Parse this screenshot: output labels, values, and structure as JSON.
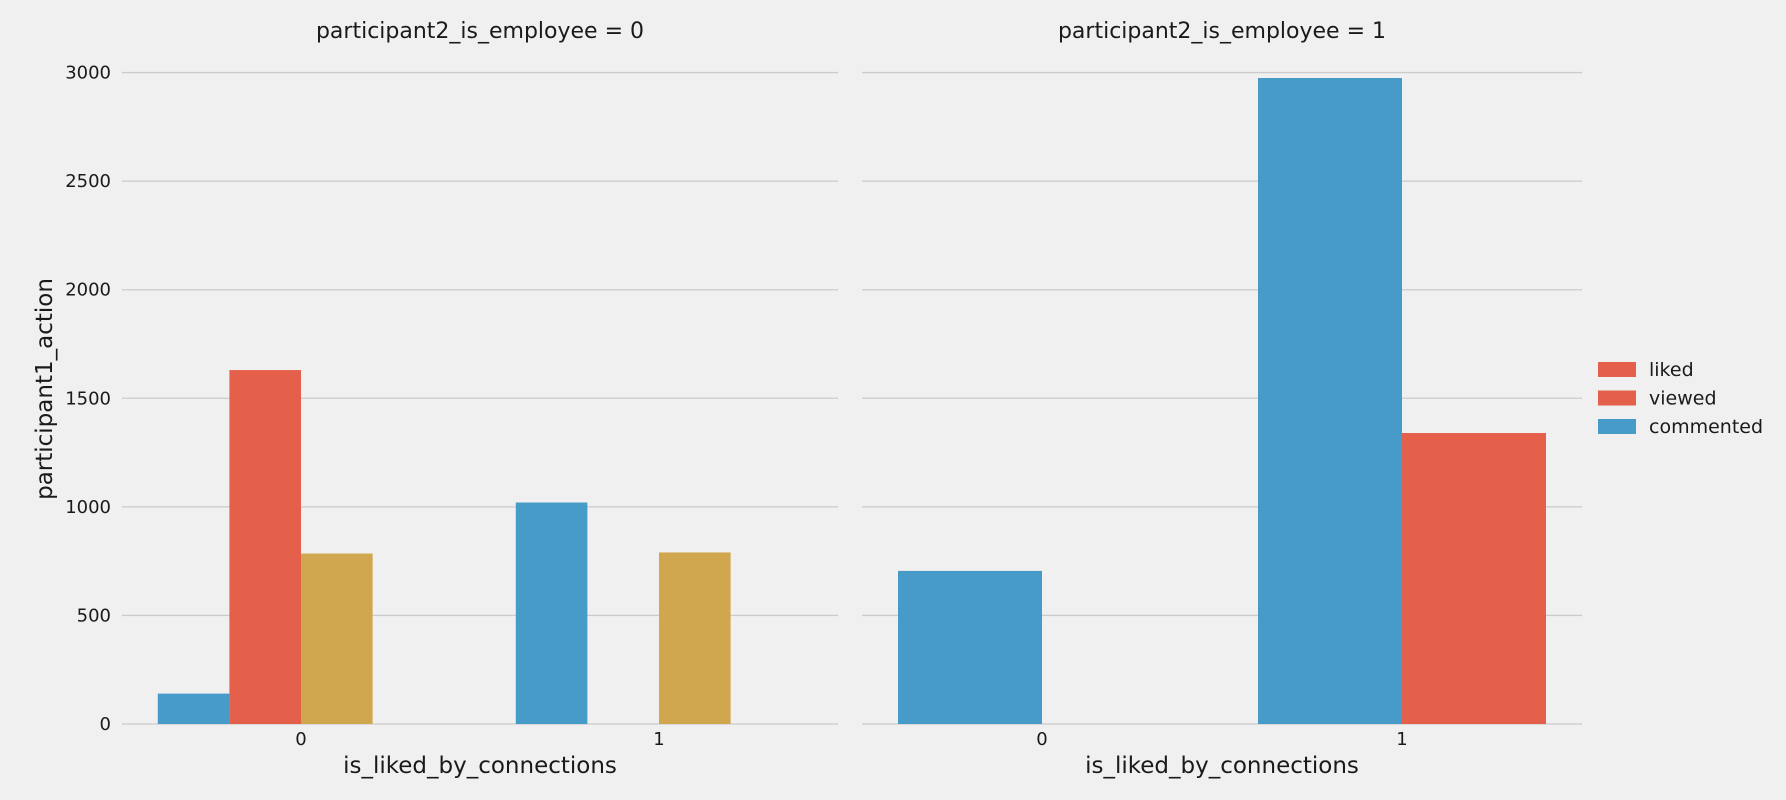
{
  "chart_data": {
    "type": "bar",
    "ylabel": "participant1_action",
    "ylim": [
      0,
      3150
    ],
    "yticks": [
      0,
      500,
      1000,
      1500,
      2000,
      2500,
      3000
    ],
    "grid": true,
    "legend_placement": "right",
    "legend": [
      {
        "label": "liked",
        "color": "#e5604a"
      },
      {
        "label": "viewed",
        "color": "#e5604a"
      },
      {
        "label": "commented",
        "color": "#479bc8"
      }
    ],
    "palette": [
      "#479bc8",
      "#e5604a",
      "#d0a74e"
    ],
    "panels": [
      {
        "title": "participant2_is_employee = 0",
        "xlabel": "is_liked_by_connections",
        "categories": [
          "0",
          "1"
        ],
        "hue_slots": 4,
        "bars": [
          {
            "category": "0",
            "slot": 0,
            "value": 140,
            "color": "#479bc8"
          },
          {
            "category": "0",
            "slot": 1,
            "value": 1630,
            "color": "#e5604a"
          },
          {
            "category": "0",
            "slot": 2,
            "value": 785,
            "color": "#d0a74e"
          },
          {
            "category": "1",
            "slot": 0,
            "value": 1020,
            "color": "#479bc8"
          },
          {
            "category": "1",
            "slot": 2,
            "value": 790,
            "color": "#d0a74e"
          }
        ]
      },
      {
        "title": "participant2_is_employee = 1",
        "xlabel": "is_liked_by_connections",
        "categories": [
          "0",
          "1"
        ],
        "hue_slots": 2,
        "bars": [
          {
            "category": "0",
            "slot": 0,
            "value": 705,
            "color": "#479bc8"
          },
          {
            "category": "1",
            "slot": 0,
            "value": 2975,
            "color": "#479bc8"
          },
          {
            "category": "1",
            "slot": 1,
            "value": 1340,
            "color": "#e5604a"
          }
        ]
      }
    ]
  }
}
